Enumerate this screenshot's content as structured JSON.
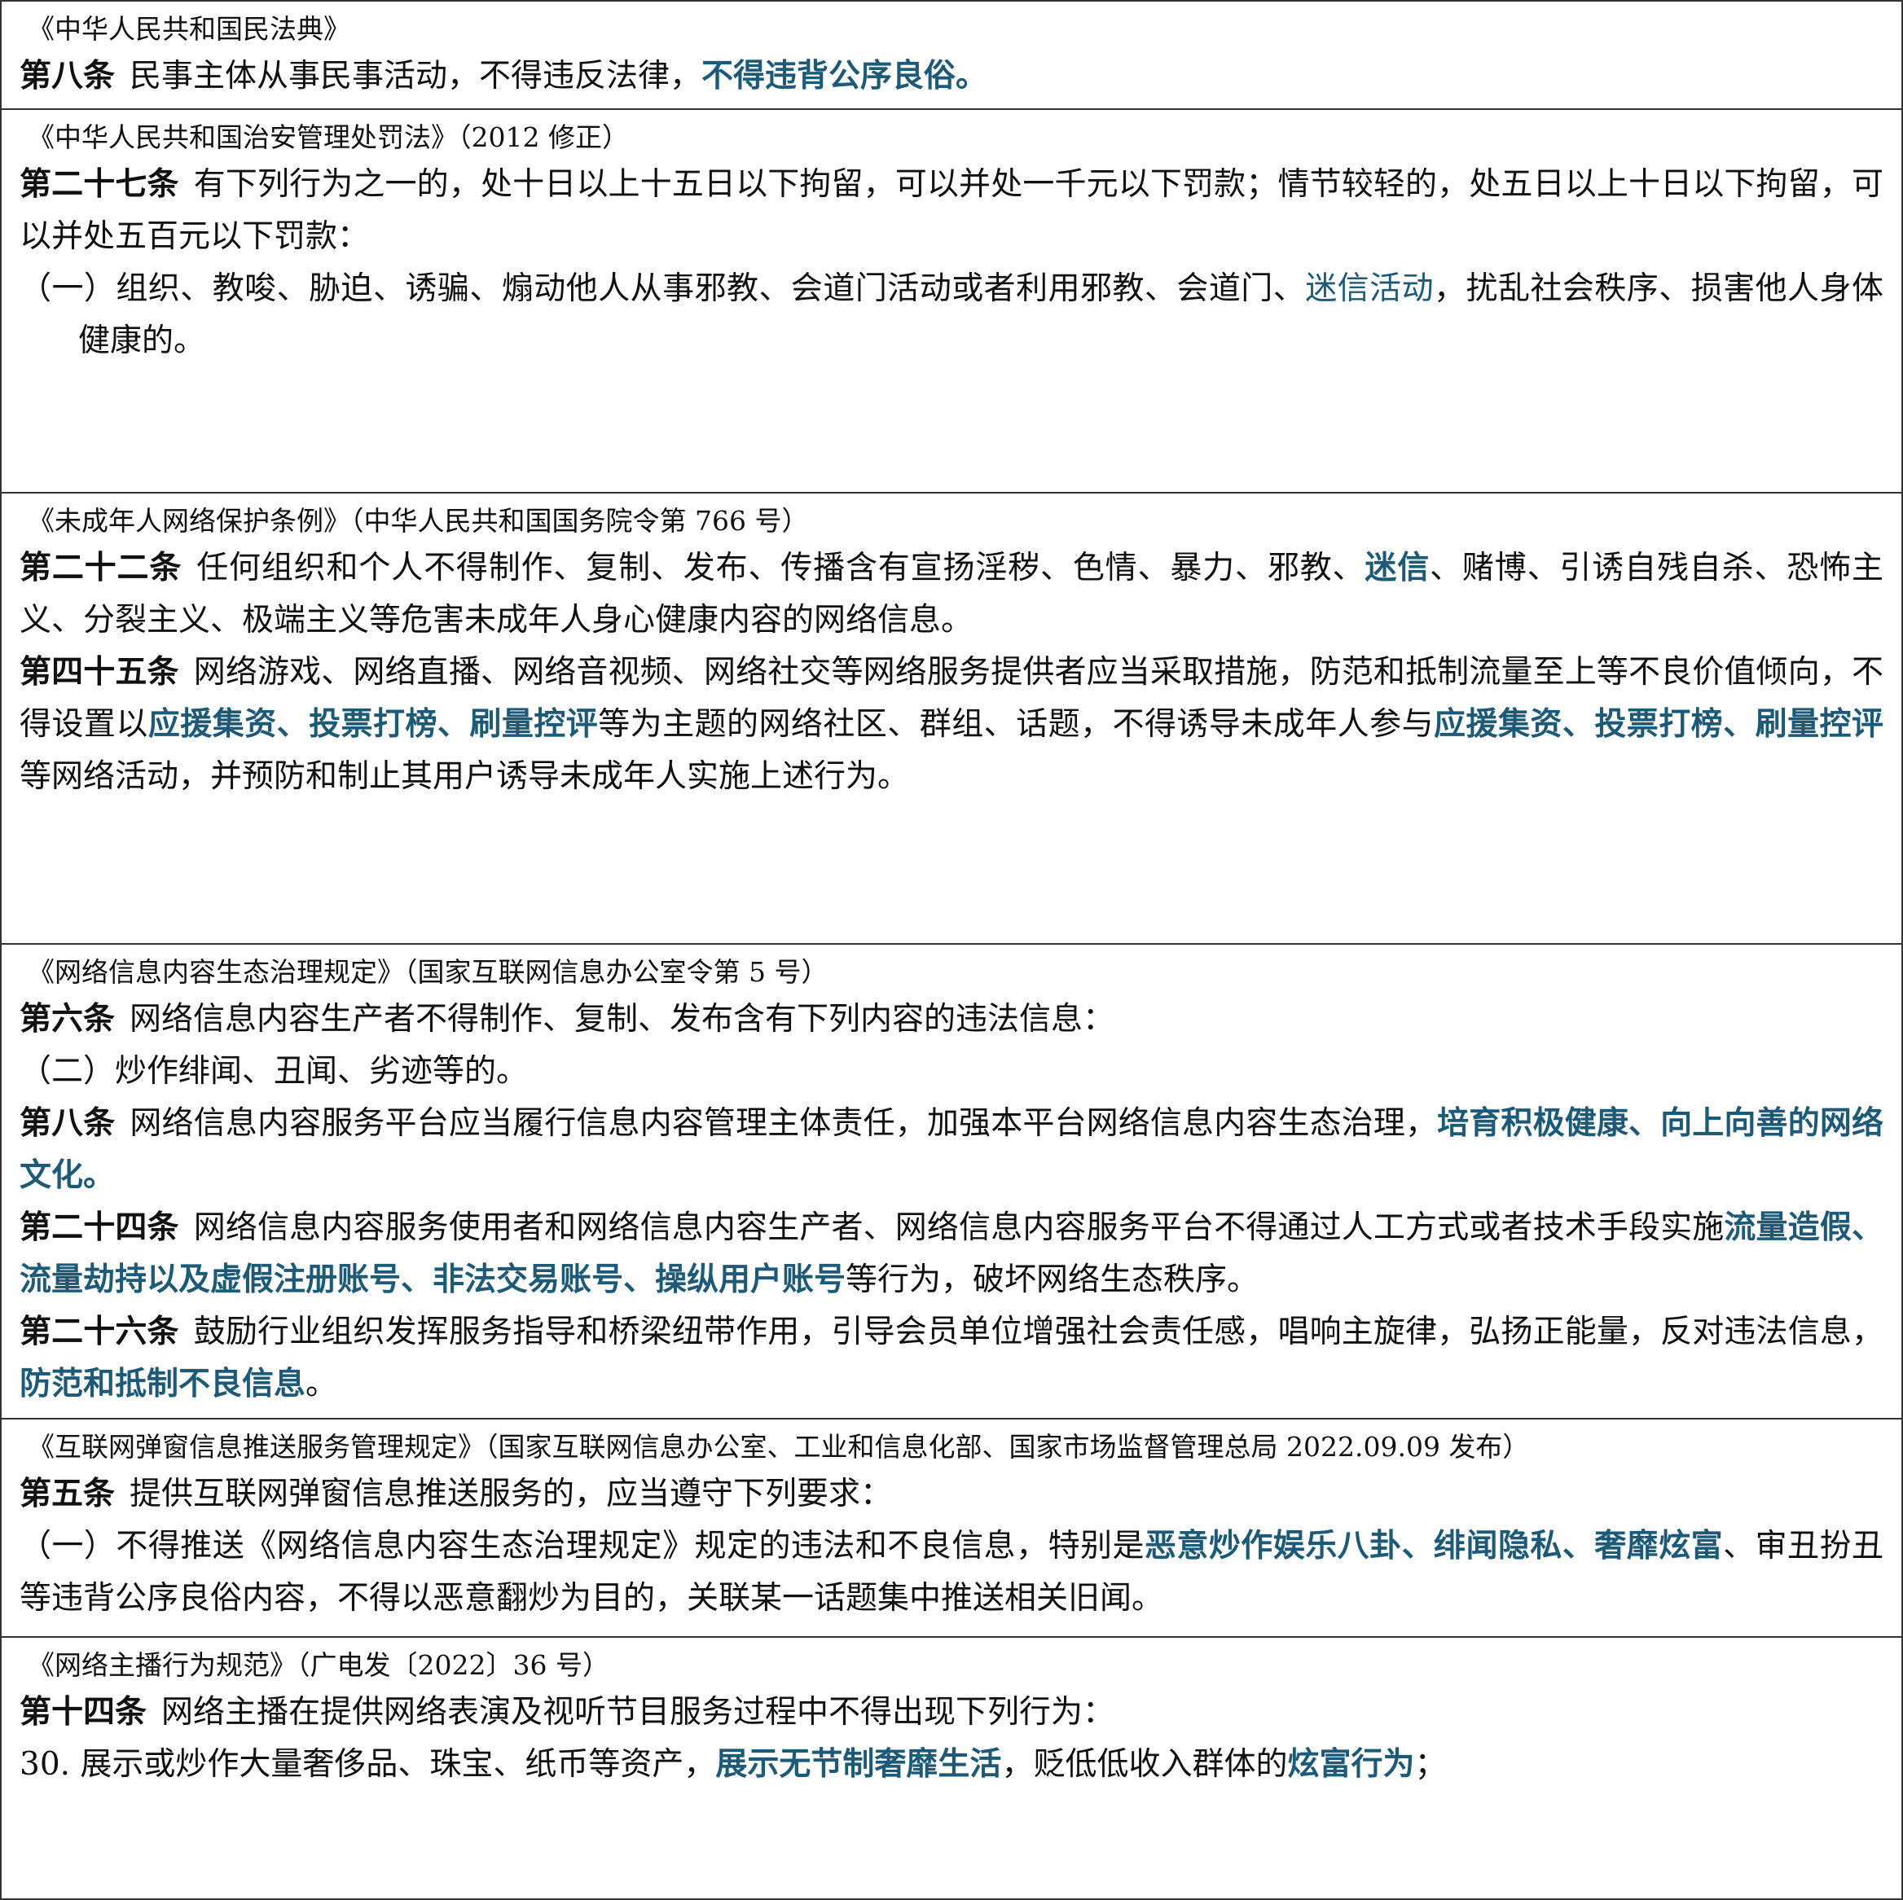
{
  "sections": [
    {
      "title": "《中华人民共和国民法典》",
      "paragraphs": [
        {
          "label": "第八条",
          "parts": [
            {
              "text": "民事主体从事民事活动，不得违反法律，"
            },
            {
              "text": "不得违背公序良俗。",
              "style": "highlight"
            }
          ]
        }
      ]
    },
    {
      "title": "《中华人民共和国治安管理处罚法》（2012 修正）",
      "paragraphs": [
        {
          "label": "第二十七条",
          "parts": [
            {
              "text": "有下列行为之一的，处十日以上十五日以下拘留，可以并处一千元以下罚款；情节较轻的，处五日以上十日以下拘留，可以并处五百元以下罚款："
            }
          ]
        },
        {
          "parts": [
            {
              "text": "（一）组织、教唆、胁迫、诱骗、煽动他人从事邪教、会道门活动或者利用邪教、会道门、"
            },
            {
              "text": "迷信活动",
              "style": "blue"
            },
            {
              "text": "，扰乱社会秩序、损害他人身体健康的。"
            }
          ]
        }
      ]
    },
    {
      "title": "《未成年人网络保护条例》（中华人民共和国国务院令第 766 号）",
      "paragraphs": [
        {
          "label": "第二十二条",
          "parts": [
            {
              "text": "任何组织和个人不得制作、复制、发布、传播含有宣扬淫秽、色情、暴力、邪教、"
            },
            {
              "text": "迷信",
              "style": "highlight"
            },
            {
              "text": "、赌博、引诱自残自杀、恐怖主义、分裂主义、极端主义等危害未成年人身心健康内容的网络信息。"
            }
          ]
        },
        {
          "label": "第四十五条",
          "parts": [
            {
              "text": "网络游戏、网络直播、网络音视频、网络社交等网络服务提供者应当采取措施，防范和抵制流量至上等不良价值倾向，不得设置以"
            },
            {
              "text": "应援集资、投票打榜、刷量控评",
              "style": "highlight"
            },
            {
              "text": "等为主题的网络社区、群组、话题，不得诱导未成年人参与"
            },
            {
              "text": "应援集资、投票打榜、刷量控评",
              "style": "highlight"
            },
            {
              "text": "等网络活动，并预防和制止其用户诱导未成年人实施上述行为。"
            }
          ]
        }
      ]
    },
    {
      "title": "《网络信息内容生态治理规定》（国家互联网信息办公室令第 5 号）",
      "paragraphs": [
        {
          "label": "第六条",
          "parts": [
            {
              "text": "网络信息内容生产者不得制作、复制、发布含有下列内容的违法信息："
            }
          ]
        },
        {
          "parts": [
            {
              "text": "（二）炒作绯闻、丑闻、劣迹等的。"
            }
          ]
        },
        {
          "label": "第八条",
          "parts": [
            {
              "text": "网络信息内容服务平台应当履行信息内容管理主体责任，加强本平台网络信息内容生态治理，"
            },
            {
              "text": "培育积极健康、向上向善的网络文化。",
              "style": "highlight"
            }
          ]
        },
        {
          "label": "第二十四条",
          "parts": [
            {
              "text": "网络信息内容服务使用者和网络信息内容生产者、网络信息内容服务平台不得通过人工方式或者技术手段实施"
            },
            {
              "text": "流量造假、流量劫持以及虚假注册账号、非法交易账号、操纵用户账号",
              "style": "highlight"
            },
            {
              "text": "等行为，破坏网络生态秩序。"
            }
          ]
        },
        {
          "label": "第二十六条",
          "parts": [
            {
              "text": "鼓励行业组织发挥服务指导和桥梁纽带作用，引导会员单位增强社会责任感，唱响主旋律，弘扬正能量，反对违法信息，"
            },
            {
              "text": "防范和抵制不良信息",
              "style": "highlight"
            },
            {
              "text": "。"
            }
          ]
        }
      ]
    },
    {
      "title": "《互联网弹窗信息推送服务管理规定》（国家互联网信息办公室、工业和信息化部、国家市场监督管理总局 2022.09.09 发布）",
      "paragraphs": [
        {
          "label": "第五条",
          "parts": [
            {
              "text": "提供互联网弹窗信息推送服务的，应当遵守下列要求："
            }
          ]
        },
        {
          "parts": [
            {
              "text": "（一）不得推送《网络信息内容生态治理规定》规定的违法和不良信息，特别是"
            },
            {
              "text": "恶意炒作娱乐八卦、绯闻隐私、奢靡炫富",
              "style": "highlight"
            },
            {
              "text": "、审丑扮丑等违背公序良俗内容，不得以恶意翻炒为目的，关联某一话题集中推送相关旧闻。"
            }
          ]
        }
      ]
    },
    {
      "title": "《网络主播行为规范》（广电发〔2022〕36 号）",
      "paragraphs": [
        {
          "label": "第十四条",
          "parts": [
            {
              "text": "网络主播在提供网络表演及视听节目服务过程中不得出现下列行为："
            }
          ]
        },
        {
          "parts": [
            {
              "text": "30. 展示或炒作大量奢侈品、珠宝、纸币等资产，"
            },
            {
              "text": "展示无节制奢靡生活",
              "style": "highlight"
            },
            {
              "text": "，贬低低收入群体的"
            },
            {
              "text": "炫富行为",
              "style": "highlight"
            },
            {
              "text": "；"
            }
          ]
        }
      ]
    }
  ]
}
